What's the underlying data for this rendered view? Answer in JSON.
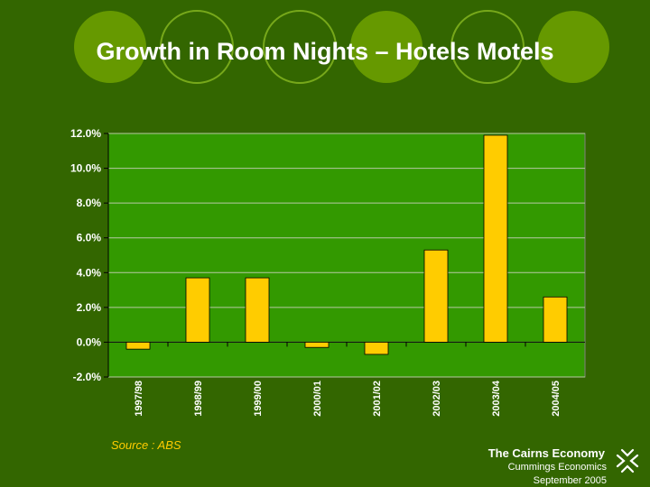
{
  "slide": {
    "title": "Growth in Room Nights – Hotels Motels",
    "source": "Source :  ABS",
    "footer_main": "The Cairns Economy",
    "footer_sub1": "Cummings Economics",
    "footer_sub2": "September 2005"
  },
  "colors": {
    "background": "#336600",
    "plot_area": "#339900",
    "bar": "#ffcc00",
    "decor_circle_fill": "#669900",
    "decor_circle_stroke": "#77a81a",
    "text": "#ffffff"
  },
  "chart_data": {
    "type": "bar",
    "categories": [
      "1997/98",
      "1998/99",
      "1999/00",
      "2000/01",
      "2001/02",
      "2002/03",
      "2003/04",
      "2004/05"
    ],
    "series": [
      {
        "values": [
          -0.4,
          3.7,
          3.7,
          -0.3,
          -0.7,
          5.3,
          11.9,
          2.6
        ]
      }
    ],
    "ylim": [
      -2.0,
      12.0
    ],
    "yticks": [
      "-2.0%",
      "0.0%",
      "2.0%",
      "4.0%",
      "6.0%",
      "8.0%",
      "10.0%",
      "12.0%"
    ],
    "ytick_values": [
      -2,
      0,
      2,
      4,
      6,
      8,
      10,
      12
    ],
    "grid": true,
    "legend": "none"
  }
}
